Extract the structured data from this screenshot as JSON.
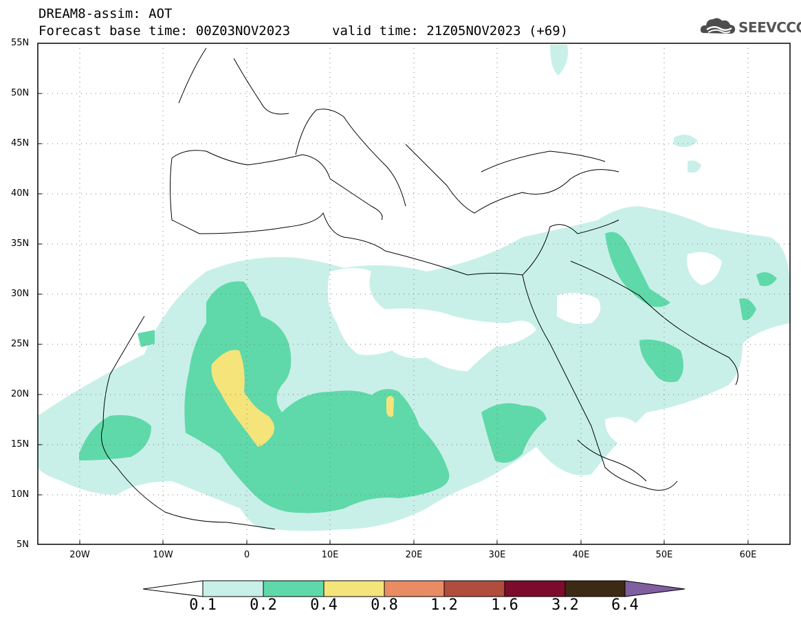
{
  "title": {
    "line1": "DREAM8-assim: AOT",
    "line2": "Forecast base time: 00Z03NOV2023",
    "line3": "valid time: 21Z05NOV2023 (+69)"
  },
  "logo": {
    "text": "SEEVCCC",
    "icon": "cloud-icon"
  },
  "map": {
    "lat_labels": [
      "55N",
      "50N",
      "45N",
      "40N",
      "35N",
      "30N",
      "25N",
      "20N",
      "15N",
      "10N",
      "5N"
    ],
    "lon_labels": [
      "20W",
      "10W",
      "0",
      "10E",
      "20E",
      "30E",
      "40E",
      "50E",
      "60E"
    ],
    "lat_range": [
      5,
      55
    ],
    "lon_range": [
      -25,
      65
    ],
    "grid": "dotted"
  },
  "colorbar": {
    "levels": [
      "0.1",
      "0.2",
      "0.4",
      "0.8",
      "1.2",
      "1.6",
      "3.2",
      "6.4"
    ],
    "colors": [
      "#ffffff",
      "#c8f0e8",
      "#5fd9a9",
      "#f5e47a",
      "#e98c64",
      "#b14d3d",
      "#7d0c2c",
      "#3d2a14",
      "#7f5fa0"
    ]
  }
}
